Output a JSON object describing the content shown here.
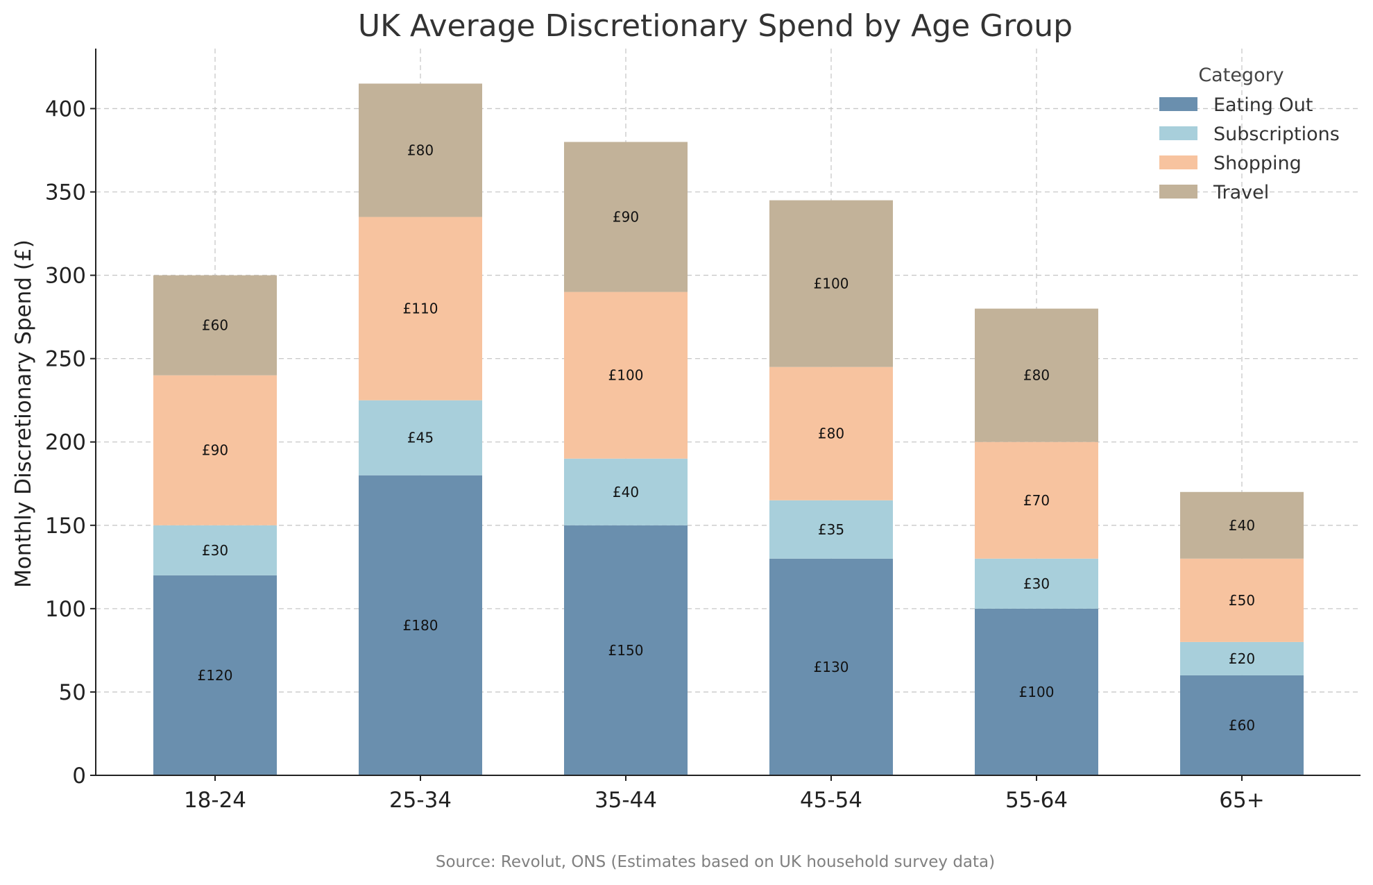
{
  "chart_data": {
    "type": "bar",
    "stacked": true,
    "title": "UK Average Discretionary Spend by Age Group",
    "xlabel": "",
    "ylabel": "Monthly Discretionary Spend (£)",
    "categories": [
      "18-24",
      "25-34",
      "35-44",
      "45-54",
      "55-64",
      "65+"
    ],
    "series": [
      {
        "name": "Eating Out",
        "color": "#6a8fae",
        "values": [
          120,
          180,
          150,
          130,
          100,
          60
        ]
      },
      {
        "name": "Subscriptions",
        "color": "#a8cfdb",
        "values": [
          30,
          45,
          40,
          35,
          30,
          20
        ]
      },
      {
        "name": "Shopping",
        "color": "#f7c39f",
        "values": [
          90,
          110,
          100,
          80,
          70,
          50
        ]
      },
      {
        "name": "Travel",
        "color": "#c2b299",
        "values": [
          60,
          80,
          90,
          100,
          80,
          40
        ]
      }
    ],
    "value_prefix": "£",
    "ylim": [
      0,
      436
    ],
    "yticks": [
      0,
      50,
      100,
      150,
      200,
      250,
      300,
      350,
      400
    ],
    "grid": true,
    "legend": {
      "title": "Category",
      "position": "top-right"
    },
    "source": "Source: Revolut, ONS (Estimates based on UK household survey data)"
  }
}
